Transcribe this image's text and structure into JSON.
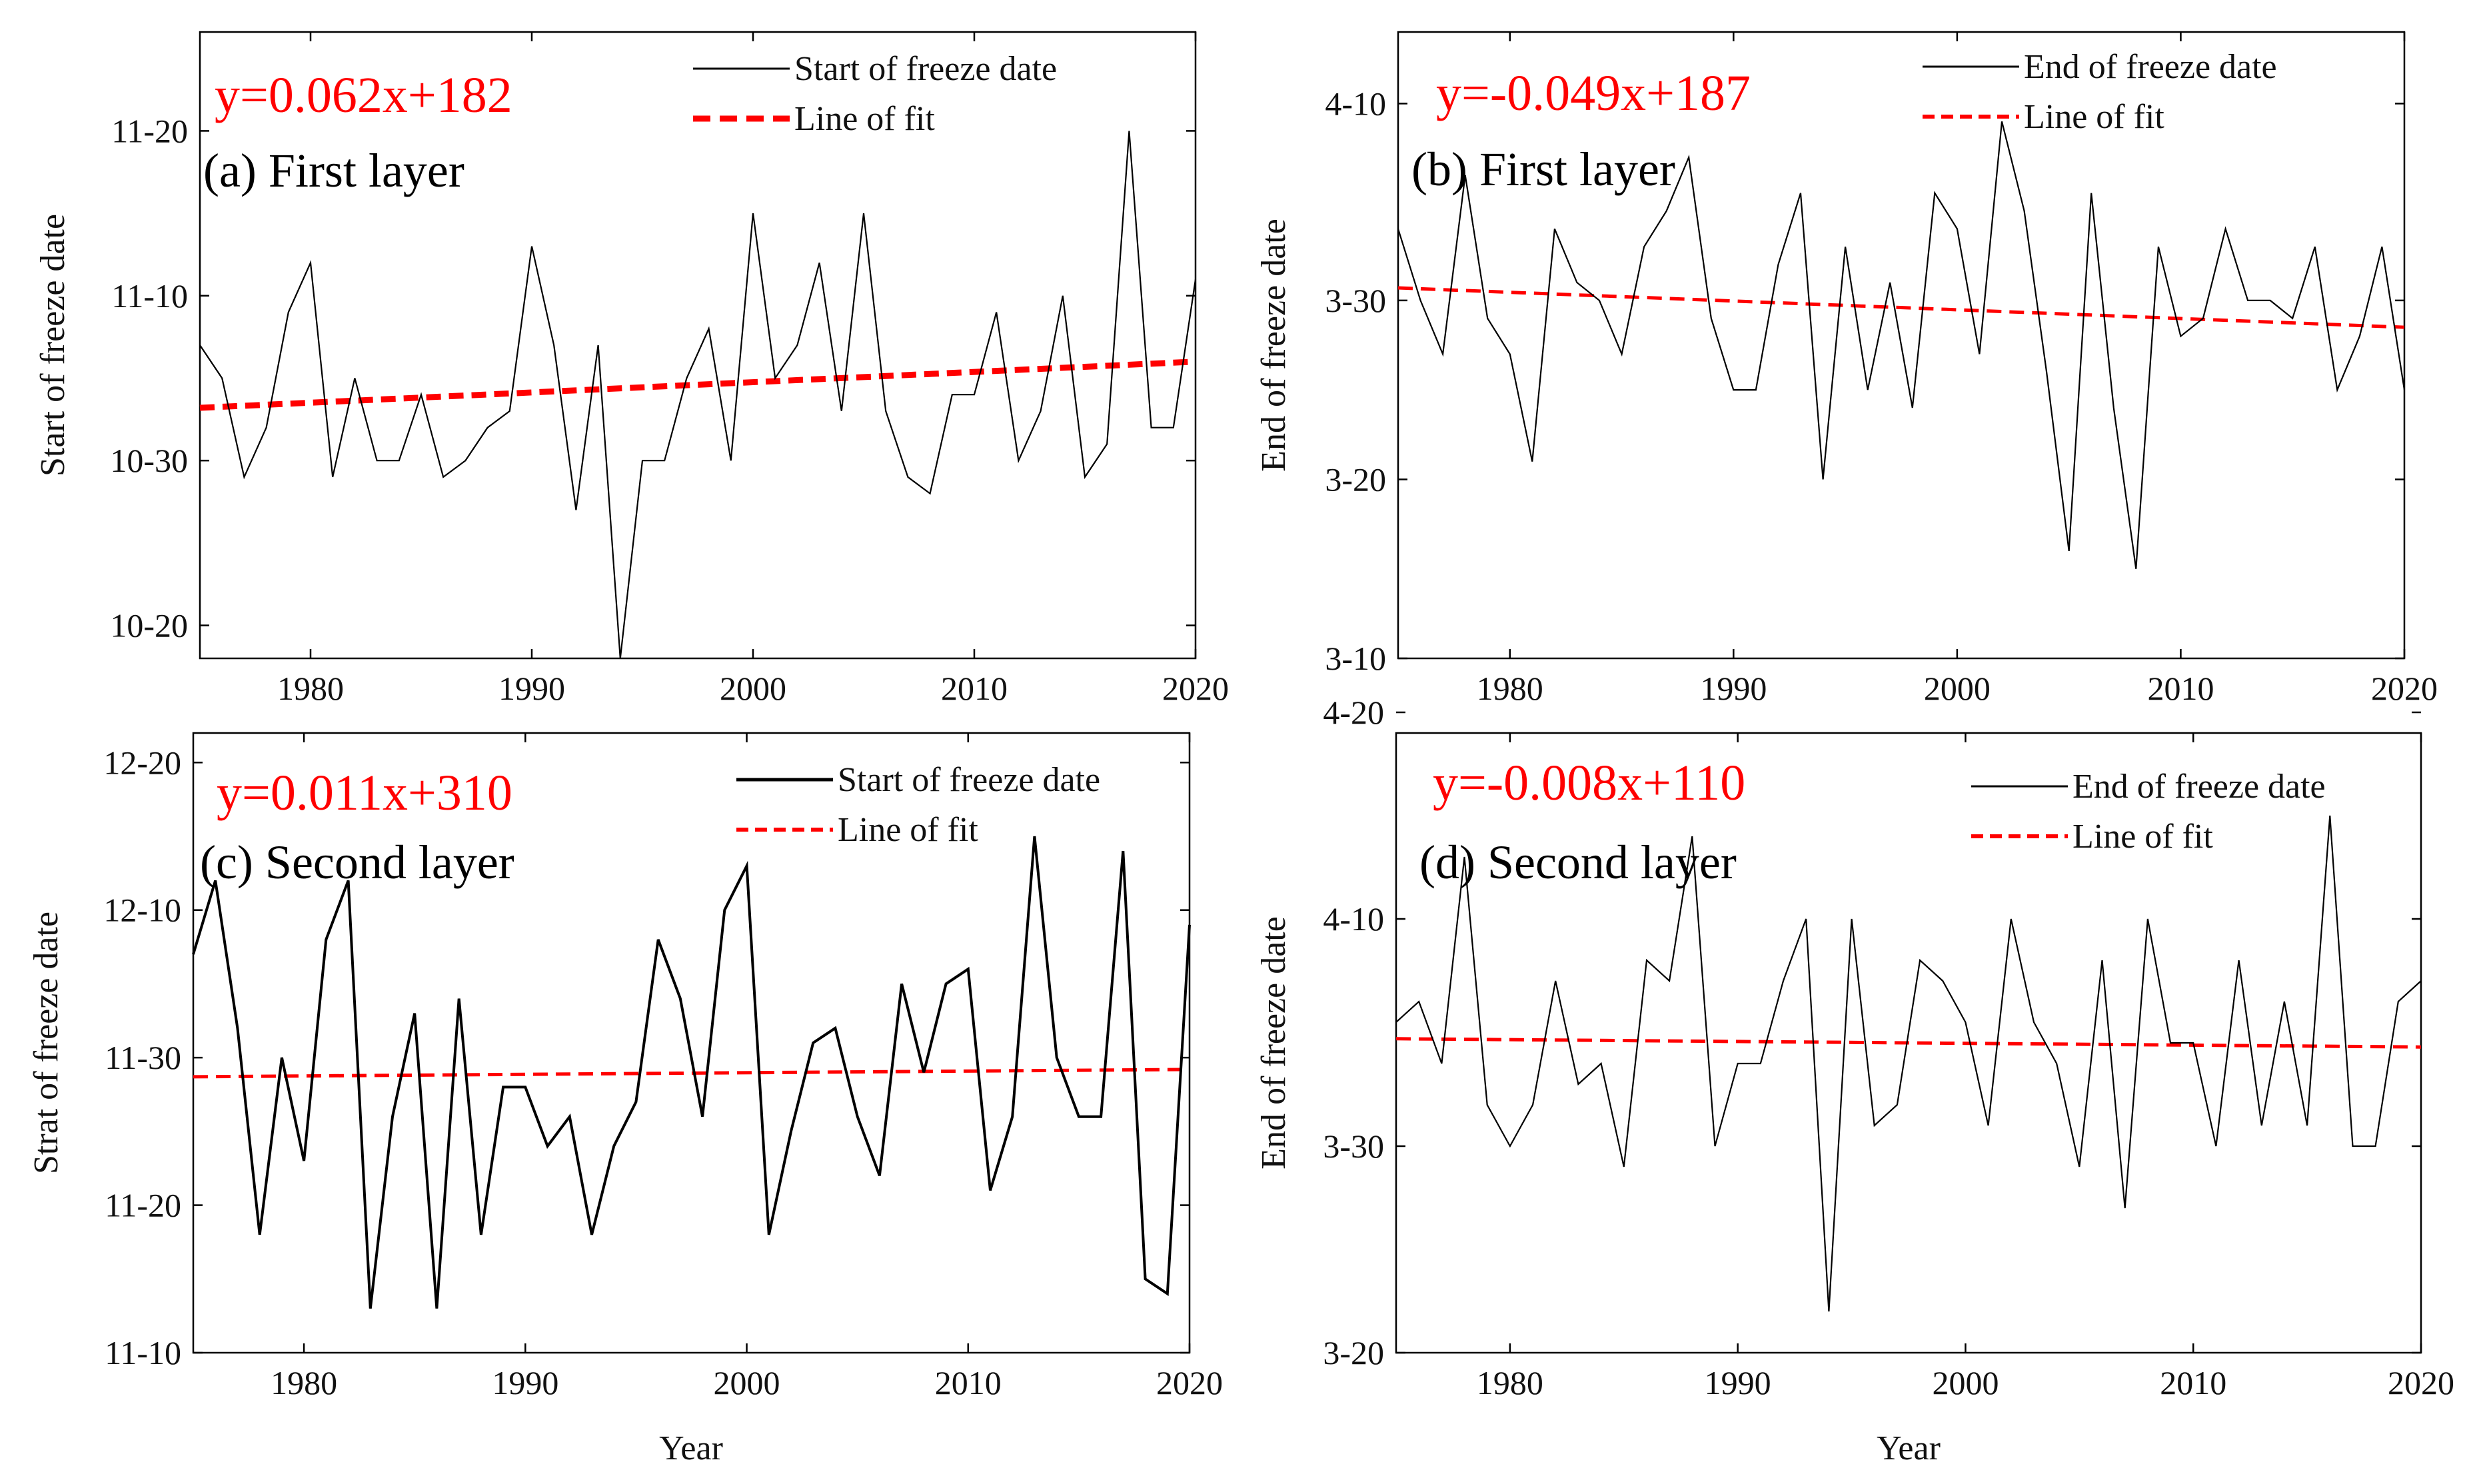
{
  "chart_data": [
    {
      "type": "line",
      "panel_label": "(a) First layer",
      "equation": "y=0.062x+182",
      "xlabel": "",
      "ylabel": "Start of freeze date",
      "xlim": [
        1975,
        2020
      ],
      "ylim": [
        -12,
        26
      ],
      "x_ticks": [
        1980,
        1990,
        2000,
        2010,
        2020
      ],
      "x_tick_labels": [
        "1980",
        "1990",
        "2000",
        "2010",
        "2020"
      ],
      "y_ticks": [
        0,
        10,
        20
      ],
      "y_tick_labels": [
        "10-20",
        "10-30",
        "11-10",
        "11-20"
      ],
      "y_tick_values": [
        -10,
        0,
        10,
        20
      ],
      "legend": [
        "Start of freeze date",
        "Line of fit"
      ],
      "series": [
        {
          "name": "Start of freeze date",
          "x": [
            1975,
            1976,
            1977,
            1978,
            1979,
            1980,
            1981,
            1982,
            1983,
            1984,
            1985,
            1986,
            1987,
            1988,
            1989,
            1990,
            1991,
            1992,
            1993,
            1994,
            1995,
            1996,
            1997,
            1998,
            1999,
            2000,
            2001,
            2002,
            2003,
            2004,
            2005,
            2006,
            2007,
            2008,
            2009,
            2010,
            2011,
            2012,
            2013,
            2014,
            2015,
            2016,
            2017,
            2018,
            2019,
            2020
          ],
          "values": [
            7,
            5,
            -1,
            2,
            9,
            12,
            -1,
            5,
            0,
            0,
            4,
            -1,
            0,
            2,
            3,
            13,
            7,
            -3,
            7,
            -12,
            0,
            0,
            5,
            8,
            0,
            15,
            5,
            7,
            12,
            3,
            15,
            3,
            -1,
            -2,
            4,
            4,
            9,
            0,
            3,
            10,
            -1,
            1,
            20,
            2,
            2,
            11
          ]
        },
        {
          "name": "Line of fit",
          "x": [
            1975,
            2020
          ],
          "values": [
            3.2,
            6.0
          ]
        }
      ]
    },
    {
      "type": "line",
      "panel_label": "(b) First layer",
      "equation": "y=-0.049x+187",
      "xlabel": "",
      "ylabel": "End of freeze date",
      "xlim": [
        1975,
        2020
      ],
      "ylim": [
        -20,
        15
      ],
      "x_tick_labels": [
        "1980",
        "1990",
        "2000",
        "2010",
        "2020"
      ],
      "y_tick_labels": [
        "3-10",
        "3-20",
        "3-30",
        "4-10"
      ],
      "y_tick_values": [
        -20,
        -10,
        0,
        11
      ],
      "legend": [
        "End of freeze date",
        "Line of fit"
      ],
      "series": [
        {
          "name": "End of freeze date",
          "x": [
            1975,
            1976,
            1977,
            1978,
            1979,
            1980,
            1981,
            1982,
            1983,
            1984,
            1985,
            1986,
            1987,
            1988,
            1989,
            1990,
            1991,
            1992,
            1993,
            1994,
            1995,
            1996,
            1997,
            1998,
            1999,
            2000,
            2001,
            2002,
            2003,
            2004,
            2005,
            2006,
            2007,
            2008,
            2009,
            2010,
            2011,
            2012,
            2013,
            2014,
            2015,
            2016,
            2017,
            2018,
            2019,
            2020
          ],
          "values": [
            4,
            0,
            -3,
            7,
            -1,
            -3,
            -9,
            4,
            1,
            0,
            -3,
            3,
            5,
            8,
            -1,
            -5,
            -5,
            2,
            6,
            -10,
            3,
            -5,
            1,
            -6,
            6,
            4,
            -3,
            10,
            5,
            -4,
            -14,
            6,
            -6,
            -15,
            3,
            -2,
            -1,
            4,
            0,
            0,
            -1,
            3,
            -5,
            -2,
            3,
            -5
          ]
        },
        {
          "name": "Line of fit",
          "x": [
            1975,
            2020
          ],
          "values": [
            0.7,
            -1.5
          ]
        }
      ]
    },
    {
      "type": "line",
      "panel_label": "(c) Second layer",
      "equation": "y=0.011x+310",
      "xlabel": "Year",
      "ylabel": "Strat of freeze date",
      "xlim": [
        1975,
        2020
      ],
      "ylim": [
        -20,
        22
      ],
      "x_tick_labels": [
        "1980",
        "1990",
        "2000",
        "2010",
        "2020"
      ],
      "y_tick_labels": [
        "11-10",
        "11-20",
        "11-30",
        "12-10",
        "12-20"
      ],
      "y_tick_values": [
        -20,
        -10,
        0,
        10,
        20
      ],
      "legend": [
        "Start of freeze date",
        "Line of fit"
      ],
      "series": [
        {
          "name": "Start of freeze date",
          "x": [
            1975,
            1976,
            1977,
            1978,
            1979,
            1980,
            1981,
            1982,
            1983,
            1984,
            1985,
            1986,
            1987,
            1988,
            1989,
            1990,
            1991,
            1992,
            1993,
            1994,
            1995,
            1996,
            1997,
            1998,
            1999,
            2000,
            2001,
            2002,
            2003,
            2004,
            2005,
            2006,
            2007,
            2008,
            2009,
            2010,
            2011,
            2012,
            2013,
            2014,
            2015,
            2016,
            2017,
            2018,
            2019,
            2020
          ],
          "values": [
            7,
            12,
            2,
            -12,
            0,
            -7,
            8,
            12,
            -17,
            -4,
            3,
            -17,
            4,
            -12,
            -2,
            -2,
            -6,
            -4,
            -12,
            -6,
            -3,
            8,
            4,
            -4,
            10,
            13,
            -12,
            -5,
            1,
            2,
            -4,
            -8,
            5,
            -1,
            5,
            6,
            -9,
            -4,
            15,
            0,
            -4,
            -4,
            14,
            -15,
            -16,
            9
          ]
        },
        {
          "name": "Line of fit",
          "x": [
            1975,
            2020
          ],
          "values": [
            -1.3,
            -0.8
          ]
        }
      ]
    },
    {
      "type": "line",
      "panel_label": "(d) Second layer",
      "equation": "y=-0.008x+110",
      "xlabel": "Year",
      "ylabel": "End of freeze date",
      "xlim": [
        1975,
        2020
      ],
      "ylim": [
        -10,
        20
      ],
      "x_tick_labels": [
        "1980",
        "1990",
        "2000",
        "2010",
        "2020"
      ],
      "y_tick_labels": [
        "3-20",
        "3-30",
        "4-10",
        "4-20"
      ],
      "y_tick_values": [
        -10,
        0,
        11,
        21
      ],
      "legend": [
        "End of freeze date",
        "Line of fit"
      ],
      "series": [
        {
          "name": "End of freeze date",
          "x": [
            1975,
            1976,
            1977,
            1978,
            1979,
            1980,
            1981,
            1982,
            1983,
            1984,
            1985,
            1986,
            1987,
            1988,
            1989,
            1990,
            1991,
            1992,
            1993,
            1994,
            1995,
            1996,
            1997,
            1998,
            1999,
            2000,
            2001,
            2002,
            2003,
            2004,
            2005,
            2006,
            2007,
            2008,
            2009,
            2010,
            2011,
            2012,
            2013,
            2014,
            2015,
            2016,
            2017,
            2018,
            2019,
            2020
          ],
          "values": [
            6,
            7,
            4,
            14,
            2,
            0,
            2,
            8,
            3,
            4,
            -1,
            9,
            8,
            15,
            0,
            4,
            4,
            8,
            11,
            -8,
            11,
            1,
            2,
            9,
            8,
            6,
            1,
            11,
            6,
            4,
            -1,
            9,
            -3,
            11,
            5,
            5,
            0,
            9,
            1,
            7,
            1,
            16,
            0,
            0,
            7,
            8
          ]
        },
        {
          "name": "Line of fit",
          "x": [
            1975,
            2020
          ],
          "values": [
            5.2,
            4.8
          ]
        }
      ]
    }
  ]
}
